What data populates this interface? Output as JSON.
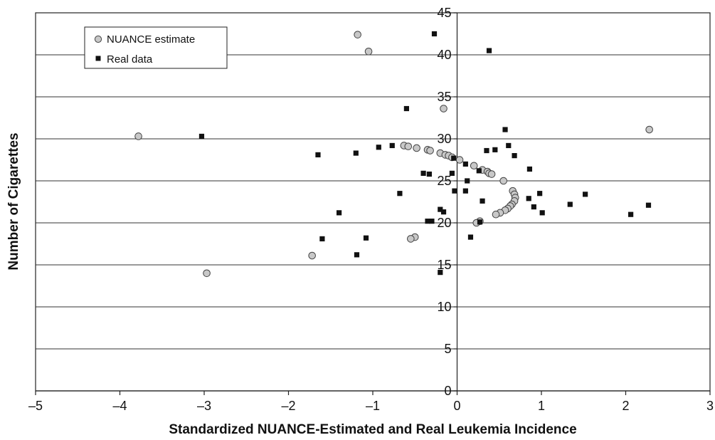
{
  "chart_data": {
    "type": "scatter",
    "title": "",
    "xlabel": "Standardized NUANCE-Estimated and Real Leukemia Incidence",
    "ylabel": "Number of Cigarettes",
    "xlim": [
      -5,
      3
    ],
    "ylim": [
      0,
      45
    ],
    "xticks": [
      -5,
      -4,
      -3,
      -2,
      -1,
      0,
      1,
      2,
      3
    ],
    "xtick_labels": [
      "–5",
      "–4",
      "–3",
      "–2",
      "–1",
      "0",
      "1",
      "2",
      "3"
    ],
    "yticks": [
      0,
      5,
      10,
      15,
      20,
      25,
      30,
      35,
      40,
      45
    ],
    "ytick_labels": [
      "0",
      "5",
      "10",
      "15",
      "20",
      "25",
      "30",
      "35",
      "40",
      "45"
    ],
    "grid": "horizontal",
    "legend_position": "top-left",
    "series": [
      {
        "name": "NUANCE estimate",
        "marker": "circle",
        "color": "#c8c8c8",
        "stroke": "#444444",
        "points": [
          [
            -1.18,
            42.4
          ],
          [
            -1.05,
            40.4
          ],
          [
            -3.78,
            30.3
          ],
          [
            -0.16,
            33.6
          ],
          [
            2.28,
            31.1
          ],
          [
            -0.63,
            29.2
          ],
          [
            -0.58,
            29.1
          ],
          [
            -0.48,
            28.9
          ],
          [
            -0.35,
            28.7
          ],
          [
            -0.32,
            28.6
          ],
          [
            -0.2,
            28.3
          ],
          [
            -0.14,
            28.1
          ],
          [
            -0.1,
            28.0
          ],
          [
            -0.06,
            27.8
          ],
          [
            0.03,
            27.5
          ],
          [
            0.2,
            26.8
          ],
          [
            0.3,
            26.3
          ],
          [
            0.36,
            26.1
          ],
          [
            0.38,
            25.9
          ],
          [
            0.41,
            25.8
          ],
          [
            0.55,
            25.0
          ],
          [
            0.66,
            23.8
          ],
          [
            0.68,
            23.4
          ],
          [
            0.69,
            23.0
          ],
          [
            0.68,
            22.6
          ],
          [
            0.65,
            22.2
          ],
          [
            0.63,
            22.0
          ],
          [
            0.6,
            21.7
          ],
          [
            0.57,
            21.5
          ],
          [
            0.51,
            21.2
          ],
          [
            0.46,
            21.0
          ],
          [
            0.27,
            20.2
          ],
          [
            0.23,
            20.0
          ],
          [
            -0.5,
            18.3
          ],
          [
            -0.55,
            18.1
          ],
          [
            -1.72,
            16.1
          ],
          [
            -2.97,
            14.0
          ]
        ]
      },
      {
        "name": "Real data",
        "marker": "square",
        "color": "#111111",
        "points": [
          [
            -0.27,
            42.5
          ],
          [
            0.38,
            40.5
          ],
          [
            -3.03,
            30.3
          ],
          [
            -0.6,
            33.6
          ],
          [
            0.57,
            31.1
          ],
          [
            -1.65,
            28.1
          ],
          [
            -1.2,
            28.3
          ],
          [
            -0.93,
            29.0
          ],
          [
            -0.77,
            29.2
          ],
          [
            0.68,
            28.0
          ],
          [
            0.61,
            29.2
          ],
          [
            0.45,
            28.7
          ],
          [
            0.35,
            28.6
          ],
          [
            -0.04,
            27.7
          ],
          [
            0.1,
            27.0
          ],
          [
            0.26,
            26.2
          ],
          [
            0.86,
            26.4
          ],
          [
            -0.4,
            25.9
          ],
          [
            -0.33,
            25.8
          ],
          [
            -0.06,
            25.9
          ],
          [
            0.12,
            25.0
          ],
          [
            -0.68,
            23.5
          ],
          [
            -0.03,
            23.8
          ],
          [
            0.1,
            23.8
          ],
          [
            0.85,
            22.9
          ],
          [
            0.98,
            23.5
          ],
          [
            1.52,
            23.4
          ],
          [
            0.3,
            22.6
          ],
          [
            0.91,
            21.9
          ],
          [
            1.34,
            22.2
          ],
          [
            2.27,
            22.1
          ],
          [
            -1.4,
            21.2
          ],
          [
            -0.2,
            21.6
          ],
          [
            -0.16,
            21.3
          ],
          [
            1.01,
            21.2
          ],
          [
            2.06,
            21.0
          ],
          [
            -0.35,
            20.2
          ],
          [
            -0.3,
            20.2
          ],
          [
            0.27,
            20.1
          ],
          [
            -1.6,
            18.1
          ],
          [
            -1.08,
            18.2
          ],
          [
            0.16,
            18.3
          ],
          [
            -1.19,
            16.2
          ],
          [
            -0.2,
            14.1
          ]
        ]
      }
    ]
  }
}
